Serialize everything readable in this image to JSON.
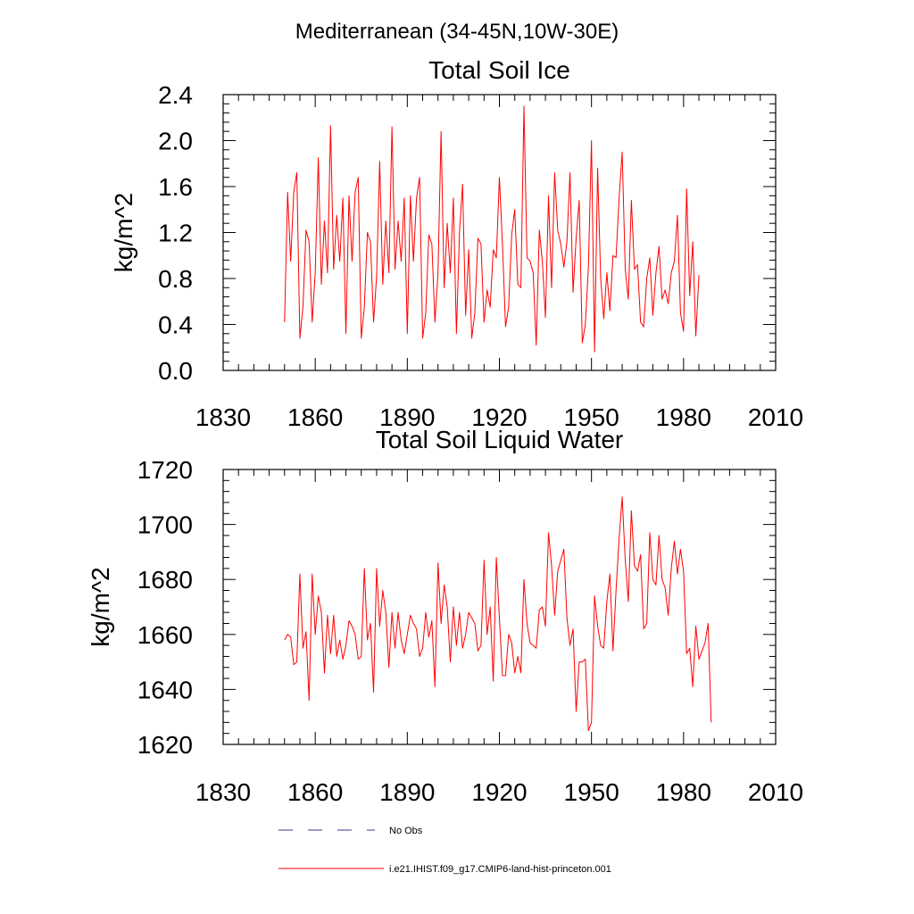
{
  "figure": {
    "title": "Mediterranean (34-45N,10W-30E)",
    "legend": [
      {
        "label": "No Obs",
        "style": "dashed",
        "color": "#3a3a8c"
      },
      {
        "label": "i.e21.IHIST.f09_g17.CMIP6-land-hist-princeton.001",
        "style": "solid",
        "color": "#ff0000"
      }
    ]
  },
  "chart_data": [
    {
      "type": "line",
      "title": "Total Soil Ice",
      "xlabel": "",
      "ylabel": "kg/m^2",
      "xlim": [
        1830,
        2010
      ],
      "ylim": [
        0.0,
        2.4
      ],
      "xticks": [
        1830,
        1860,
        1890,
        1920,
        1950,
        1980,
        2010
      ],
      "yticks": [
        0.0,
        0.4,
        0.8,
        1.2,
        1.6,
        2.0,
        2.4
      ],
      "ytick_labels": [
        "0.0",
        "0.4",
        "0.8",
        "1.2",
        "1.6",
        "2.0",
        "2.4"
      ],
      "grid": false,
      "color": "#ff0000",
      "x_start": 1850,
      "values": [
        0.42,
        1.55,
        0.95,
        1.55,
        1.72,
        0.28,
        0.55,
        1.22,
        1.12,
        0.42,
        0.85,
        1.85,
        0.75,
        1.3,
        0.85,
        2.13,
        0.88,
        1.35,
        0.95,
        1.5,
        0.32,
        1.52,
        0.95,
        1.55,
        1.68,
        0.28,
        0.55,
        1.2,
        1.12,
        0.42,
        0.82,
        1.82,
        0.75,
        1.3,
        0.85,
        2.12,
        0.88,
        1.3,
        0.95,
        1.5,
        0.32,
        1.52,
        0.95,
        1.5,
        1.68,
        0.28,
        0.5,
        1.18,
        1.1,
        0.42,
        0.85,
        2.08,
        0.72,
        1.28,
        0.85,
        1.5,
        0.32,
        1.2,
        1.62,
        0.48,
        1.05,
        0.28,
        0.5,
        1.15,
        1.1,
        0.42,
        0.7,
        0.55,
        1.05,
        0.98,
        1.68,
        1.1,
        0.38,
        0.55,
        1.18,
        1.4,
        0.75,
        0.72,
        2.3,
        0.98,
        0.95,
        0.85,
        0.22,
        1.22,
        0.95,
        0.46,
        1.52,
        0.72,
        1.72,
        1.22,
        1.1,
        0.9,
        1.12,
        1.72,
        0.68,
        1.15,
        1.48,
        0.24,
        0.4,
        0.9,
        2.0,
        0.16,
        1.76,
        0.8,
        0.45,
        0.85,
        0.52,
        1.0,
        0.98,
        1.5,
        1.9,
        0.88,
        0.62,
        1.48,
        0.88,
        0.92,
        0.42,
        0.38,
        0.8,
        0.98,
        0.48,
        0.85,
        1.08,
        0.62,
        0.7,
        0.58,
        0.85,
        0.95,
        1.35,
        0.5,
        0.34,
        1.58,
        0.65,
        1.12,
        0.3,
        0.83
      ]
    },
    {
      "type": "line",
      "title": "Total Soil Liquid Water",
      "xlabel": "",
      "ylabel": "kg/m^2",
      "xlim": [
        1830,
        2010
      ],
      "ylim": [
        1620,
        1720
      ],
      "xticks": [
        1830,
        1860,
        1890,
        1920,
        1950,
        1980,
        2010
      ],
      "yticks": [
        1620,
        1640,
        1660,
        1680,
        1700,
        1720
      ],
      "ytick_labels": [
        "1620",
        "1640",
        "1660",
        "1680",
        "1700",
        "1720"
      ],
      "grid": false,
      "color": "#ff0000",
      "x_start": 1850,
      "values": [
        1658,
        1660,
        1659,
        1649,
        1650,
        1682,
        1655,
        1661,
        1636,
        1682,
        1660,
        1674,
        1668,
        1646,
        1667,
        1653,
        1667,
        1652,
        1658,
        1651,
        1656,
        1665,
        1663,
        1660,
        1651,
        1652,
        1684,
        1658,
        1664,
        1639,
        1684,
        1663,
        1676,
        1668,
        1648,
        1668,
        1655,
        1668,
        1658,
        1653,
        1660,
        1667,
        1664,
        1662,
        1652,
        1655,
        1668,
        1659,
        1665,
        1641,
        1686,
        1664,
        1678,
        1670,
        1650,
        1670,
        1656,
        1668,
        1655,
        1660,
        1668,
        1666,
        1664,
        1654,
        1656,
        1687,
        1660,
        1670,
        1643,
        1688,
        1666,
        1645,
        1645,
        1660,
        1657,
        1646,
        1652,
        1646,
        1680,
        1664,
        1657,
        1656,
        1655,
        1669,
        1670,
        1663,
        1697,
        1685,
        1667,
        1683,
        1687,
        1691,
        1666,
        1656,
        1662,
        1632,
        1650,
        1650,
        1651,
        1625,
        1628,
        1674,
        1663,
        1656,
        1655,
        1672,
        1682,
        1654,
        1676,
        1695,
        1710,
        1687,
        1672,
        1705,
        1685,
        1683,
        1689,
        1662,
        1664,
        1697,
        1680,
        1678,
        1696,
        1680,
        1677,
        1667,
        1684,
        1694,
        1682,
        1691,
        1683,
        1653,
        1655,
        1641,
        1663,
        1651,
        1654,
        1657,
        1664,
        1628
      ]
    }
  ]
}
